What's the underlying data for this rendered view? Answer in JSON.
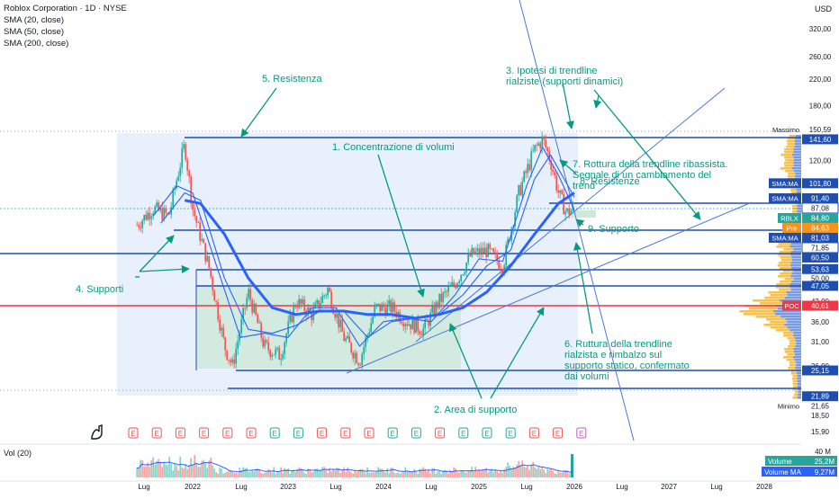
{
  "header": {
    "symbol": "Roblox Corporation · 1D · NYSE",
    "indicators": [
      "SMA (20, close)",
      "SMA (50, close)",
      "SMA (200, close)"
    ],
    "currency": "USD"
  },
  "volume_pane": {
    "title": "Vol (20)",
    "scale_max": "40 M",
    "volume_label": "Volume",
    "volume_value": "25,2M",
    "volume_ma_label": "Volume MA",
    "volume_ma_value": "9,27M"
  },
  "price_axis": {
    "ticks": [
      "320,00",
      "260,00",
      "220,00",
      "180,00",
      "120,00",
      "50,00",
      "42,00",
      "36,00",
      "31,00",
      "26,00",
      "18,50",
      "15,90"
    ]
  },
  "price_tags": [
    {
      "label": "Massimo",
      "value": "150,59",
      "style": "plain"
    },
    {
      "label": "",
      "value": "141,60",
      "style": "blue"
    },
    {
      "label": "SMA:MA",
      "value": "101,80",
      "style": "blue"
    },
    {
      "label": "SMA:MA",
      "value": "91,40",
      "style": "blue"
    },
    {
      "label": "",
      "value": "87,08",
      "style": "outline"
    },
    {
      "label": "RBLX",
      "value": "84,80",
      "style": "green"
    },
    {
      "label": "Pre",
      "value": "84,63",
      "style": "orange"
    },
    {
      "label": "SMA:MA",
      "value": "81,03",
      "style": "blue"
    },
    {
      "label": "",
      "value": "71,85",
      "style": "outline"
    },
    {
      "label": "",
      "value": "60,50",
      "style": "blue"
    },
    {
      "label": "",
      "value": "53,63",
      "style": "blue"
    },
    {
      "label": "",
      "value": "47,05",
      "style": "blue"
    },
    {
      "label": "POC",
      "value": "40,61",
      "style": "red"
    },
    {
      "label": "",
      "value": "25,15",
      "style": "blue"
    },
    {
      "label": "",
      "value": "21,89",
      "style": "blue"
    },
    {
      "label": "Minimo",
      "value": "21,65",
      "style": "plain"
    }
  ],
  "time_axis": [
    "Lug",
    "2022",
    "Lug",
    "2023",
    "Lug",
    "2024",
    "Lug",
    "2025",
    "Lug",
    "2026",
    "Lug",
    "2027",
    "Lug",
    "2028"
  ],
  "earnings_markers": [
    "E",
    "E",
    "E",
    "E",
    "E",
    "E",
    "E",
    "E",
    "E",
    "E",
    "E",
    "E",
    "E",
    "E",
    "E",
    "E",
    "E",
    "E",
    "E",
    "E"
  ],
  "annotations": {
    "a1": "1. Concentrazione di volumi",
    "a2": "2. Area di supporto",
    "a3_l1": "3. Ipotesi di trendline",
    "a3_l2": "rialziste (supporti dinamici)",
    "a4": "4. Supporti",
    "a5": "5. Resistenza",
    "a6_l1": "6. Ruttura della trendline",
    "a6_l2": "rialzista e rimbalzo sul",
    "a6_l3": "supporto statico, confermato",
    "a6_l4": "dai volumi",
    "a7_l1": "7. Rottura della trendline ribassista.",
    "a7_l2": "Segnale di un cambiamento del",
    "a7_l3": "trend",
    "a8": "8. Resistenze",
    "a9": "9. Supporto"
  },
  "chart_data": {
    "type": "line",
    "title": "Roblox Corporation · 1D · NYSE",
    "y_scale": "log",
    "ylim": [
      15.9,
      320
    ],
    "x_range": [
      "2021-06",
      "2028-01"
    ],
    "horizontal_levels": [
      141.6,
      87.08,
      84.8,
      81.03,
      71.85,
      60.5,
      53.63,
      47.05,
      40.61,
      25.15,
      21.89
    ],
    "all_time_high": 150.59,
    "all_time_low": 21.65,
    "last_price": 84.8,
    "premarket_price": 84.63,
    "point_of_control": 40.61,
    "series": [
      {
        "name": "RBLX",
        "color": "#26a69a",
        "x": [
          "2021-06",
          "2021-08",
          "2021-10",
          "2021-11",
          "2021-12",
          "2022-01",
          "2022-03",
          "2022-05",
          "2022-06",
          "2022-08",
          "2022-10",
          "2022-12",
          "2023-02",
          "2023-04",
          "2023-06",
          "2023-08",
          "2023-10",
          "2023-12",
          "2024-02",
          "2024-04",
          "2024-06",
          "2024-08",
          "2024-10",
          "2024-12",
          "2025-02",
          "2025-04",
          "2025-06",
          "2025-08",
          "2025-09",
          "2025-10",
          "2025-11",
          "2025-12",
          "2026-01"
        ],
        "y": [
          75,
          85,
          80,
          105,
          135,
          85,
          55,
          30,
          26,
          45,
          30,
          28,
          42,
          38,
          46,
          32,
          27,
          40,
          40,
          36,
          34,
          42,
          48,
          60,
          62,
          55,
          95,
          130,
          140,
          120,
          95,
          82,
          85
        ]
      },
      {
        "name": "SMA (20, close)",
        "color": "#2962ff",
        "x": [
          "2021-08",
          "2021-11",
          "2022-01",
          "2022-04",
          "2022-07",
          "2022-10",
          "2023-01",
          "2023-04",
          "2023-07",
          "2023-10",
          "2024-01",
          "2024-04",
          "2024-07",
          "2024-10",
          "2025-01",
          "2025-04",
          "2025-07",
          "2025-09",
          "2025-11",
          "2026-01"
        ],
        "y": [
          80,
          100,
          95,
          55,
          32,
          33,
          32,
          40,
          40,
          30,
          36,
          37,
          36,
          44,
          58,
          57,
          100,
          132,
          108,
          84
        ]
      },
      {
        "name": "SMA (50, close)",
        "color": "#2962ff",
        "x": [
          "2021-09",
          "2021-12",
          "2022-02",
          "2022-05",
          "2022-08",
          "2022-11",
          "2023-02",
          "2023-05",
          "2023-08",
          "2023-11",
          "2024-02",
          "2024-05",
          "2024-08",
          "2024-11",
          "2025-02",
          "2025-05",
          "2025-08",
          "2025-10",
          "2025-12",
          "2026-01"
        ],
        "y": [
          76,
          95,
          90,
          50,
          34,
          33,
          35,
          39,
          39,
          32,
          36,
          37,
          38,
          44,
          55,
          62,
          105,
          125,
          102,
          92
        ]
      },
      {
        "name": "SMA (200, close)",
        "color": "#2962ff",
        "x": [
          "2021-12",
          "2022-02",
          "2022-05",
          "2022-08",
          "2022-11",
          "2023-02",
          "2023-05",
          "2023-08",
          "2023-11",
          "2024-02",
          "2024-05",
          "2024-08",
          "2024-11",
          "2025-02",
          "2025-05",
          "2025-08",
          "2025-11",
          "2026-01"
        ],
        "y": [
          90,
          88,
          70,
          50,
          40,
          38,
          39,
          39,
          38,
          38,
          37,
          38,
          40,
          45,
          55,
          70,
          88,
          95
        ]
      }
    ]
  },
  "colors": {
    "up": "#26a69a",
    "down": "#ef5350",
    "sma": "#2962ff",
    "levels": "#1e4fb0",
    "annotation": "#089981",
    "poc": "#f23645",
    "profile_up": "#f7b733",
    "profile_blue": "#4a78d8"
  }
}
